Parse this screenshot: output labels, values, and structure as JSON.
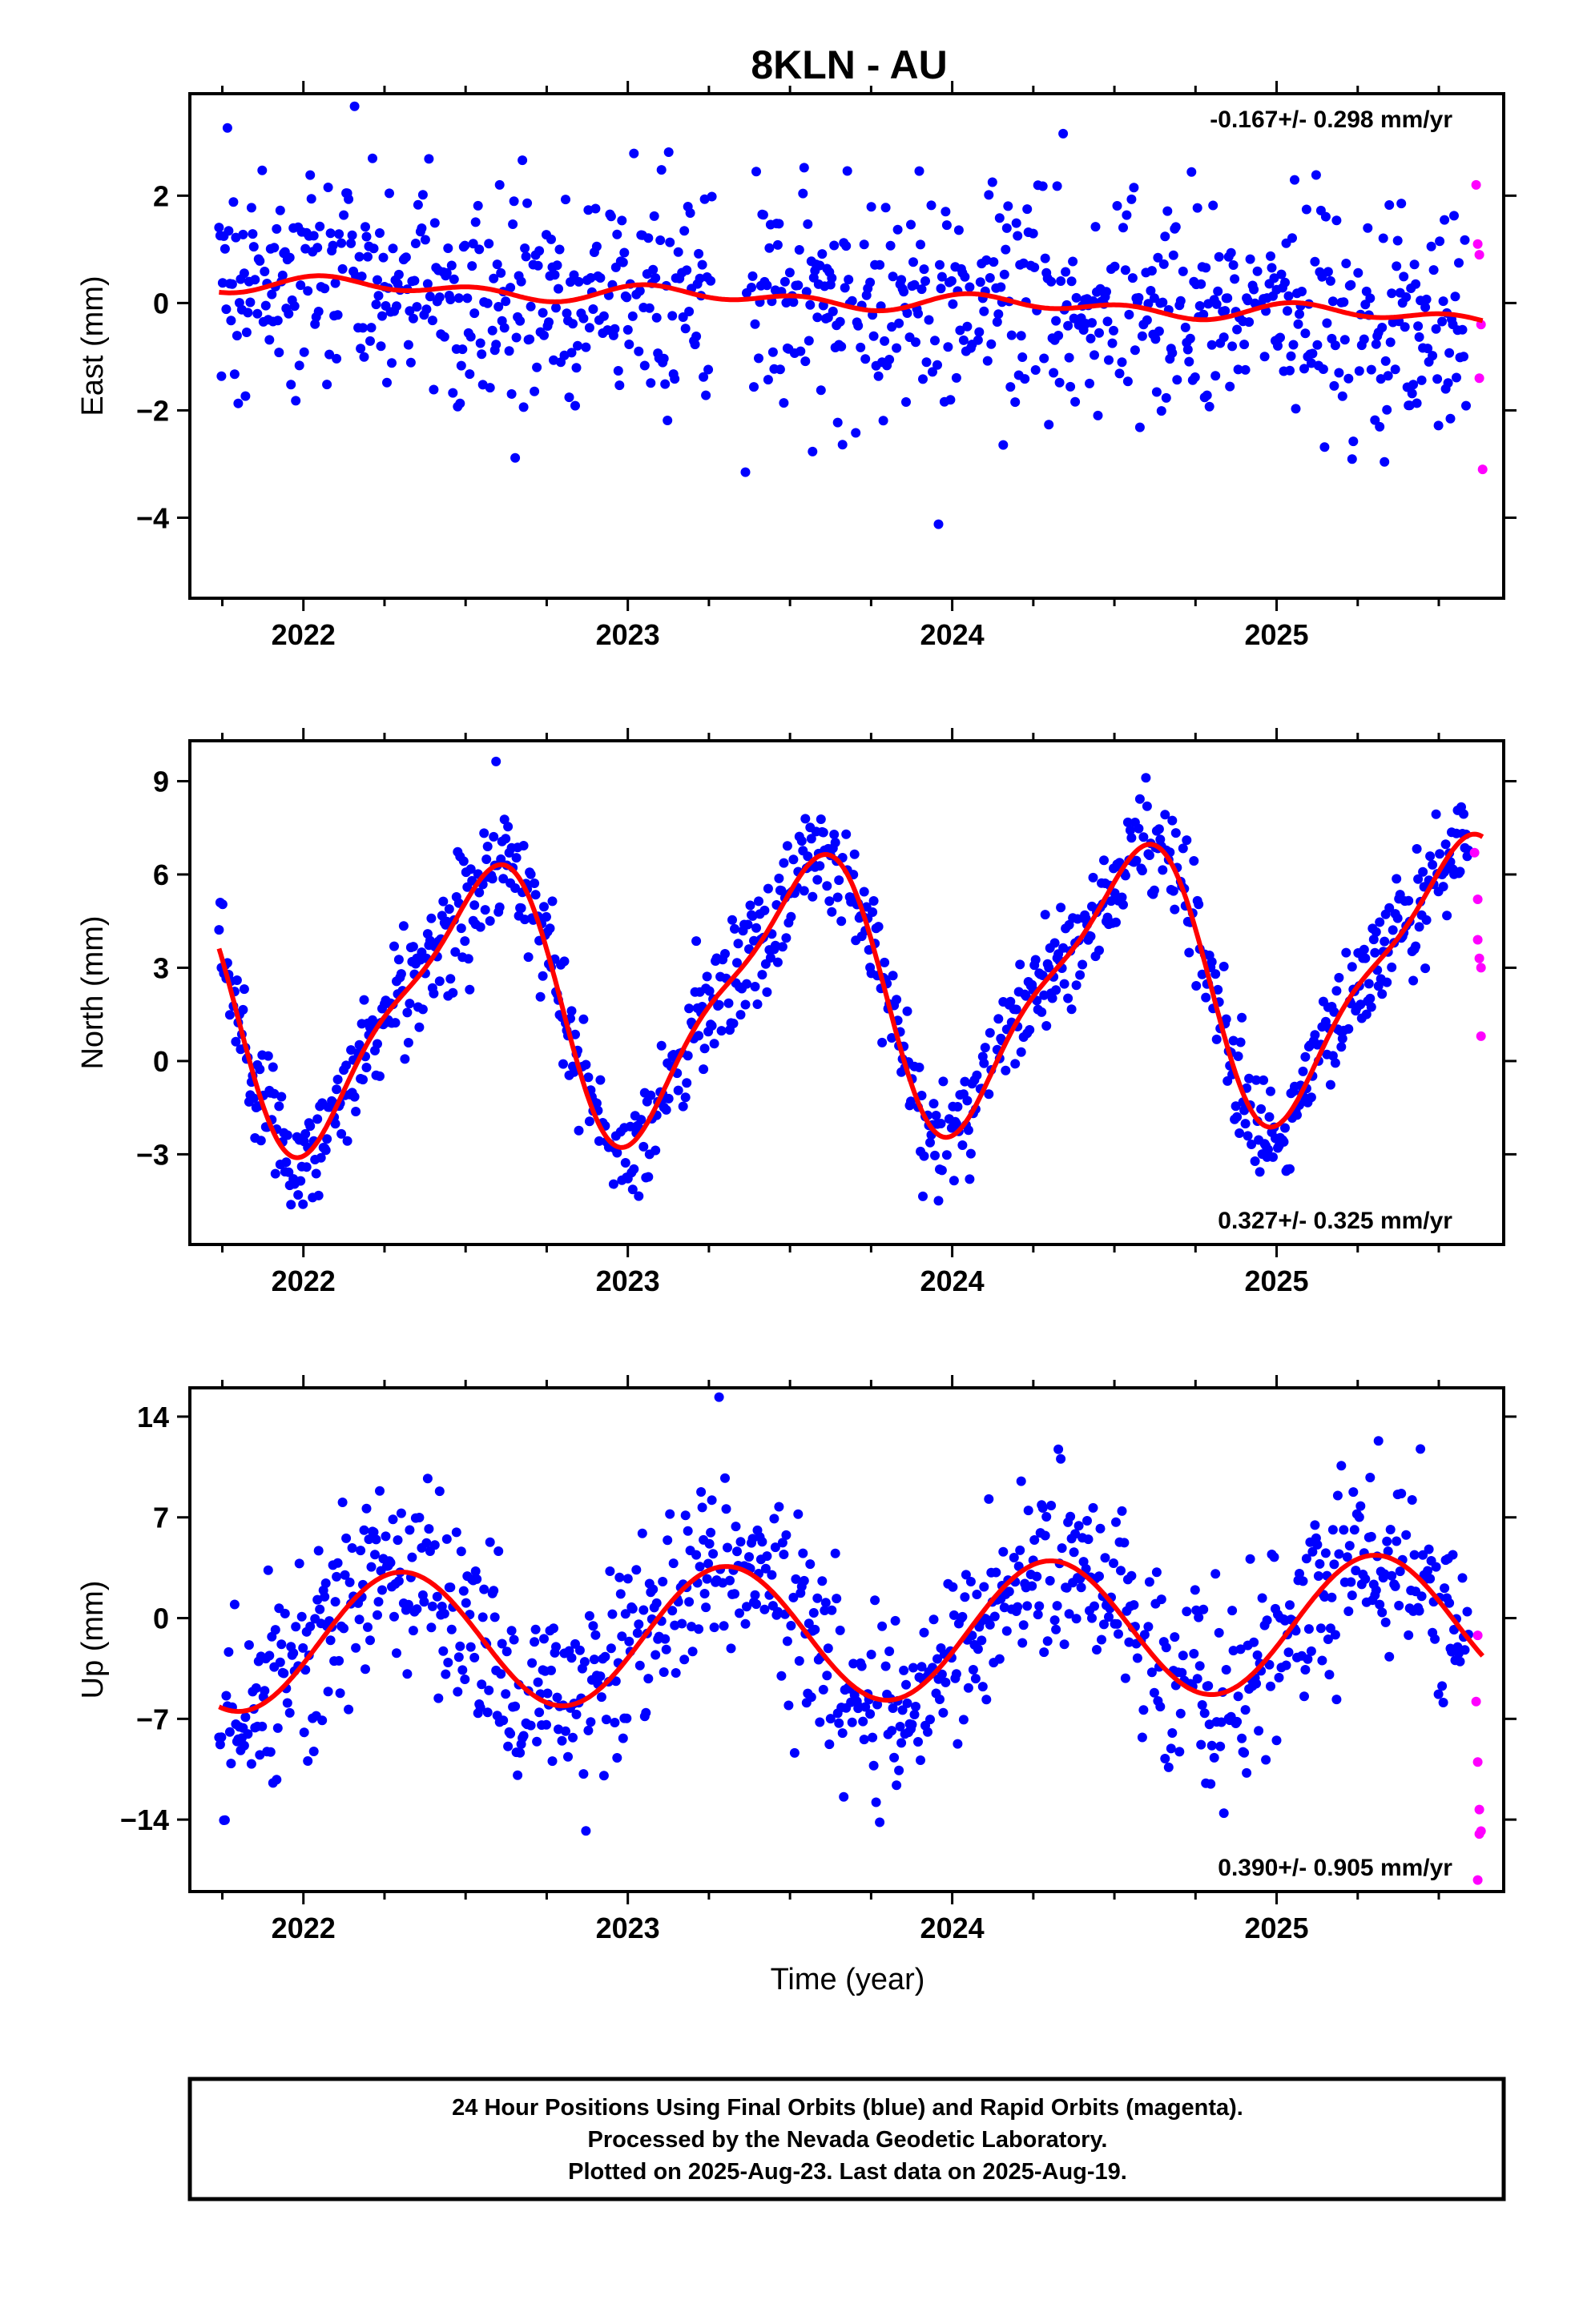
{
  "title": "8KLN - AU",
  "x_axis_label": "Time (year)",
  "colors": {
    "final": "#0000ff",
    "rapid": "#ff00ff",
    "fit": "#ff0000",
    "frame": "#000000"
  },
  "footer": {
    "line1": "24 Hour Positions Using Final Orbits (blue) and Rapid Orbits (magenta).",
    "line2": "Processed by the Nevada Geodetic Laboratory.",
    "line3": "Plotted on 2025-Aug-23. Last data on 2025-Aug-19."
  },
  "chart_data": [
    {
      "type": "scatter",
      "component": "east",
      "ylabel": "East (mm)",
      "rate_text": "-0.167+/- 0.298 mm/yr",
      "xlim": [
        2021.65,
        2025.7
      ],
      "ylim": [
        -5.5,
        3.9
      ],
      "yticks": [
        -4,
        -2,
        0,
        2
      ],
      "xticks": [
        2022,
        2023,
        2024,
        2025
      ],
      "grid": false,
      "rapid_points": [
        [
          2025.615,
          2.2
        ],
        [
          2025.62,
          1.1
        ],
        [
          2025.625,
          0.9
        ],
        [
          2025.63,
          -0.4
        ],
        [
          2025.625,
          -1.4
        ],
        [
          2025.635,
          -3.1
        ]
      ],
      "fit": {
        "offset": 0.05,
        "trend": -0.167,
        "annual_cos": 0.05,
        "annual_sin": 0.08,
        "semiannual_cos": 0.1,
        "semiannual_sin": 0.05,
        "noise_sd": 1.1
      }
    },
    {
      "type": "scatter",
      "component": "north",
      "ylabel": "North (mm)",
      "rate_text": "0.327+/- 0.325 mm/yr",
      "xlim": [
        2021.65,
        2025.7
      ],
      "ylim": [
        -5.9,
        10.3
      ],
      "yticks": [
        -3,
        0,
        3,
        6,
        9
      ],
      "xticks": [
        2022,
        2023,
        2024,
        2025
      ],
      "grid": false,
      "rapid_points": [
        [
          2025.61,
          6.7
        ],
        [
          2025.62,
          5.2
        ],
        [
          2025.62,
          3.9
        ],
        [
          2025.625,
          3.3
        ],
        [
          2025.63,
          3.0
        ],
        [
          2025.63,
          0.8
        ]
      ],
      "fit": {
        "offset": 2.2,
        "trend": 0.327,
        "annual_cos": -4.0,
        "annual_sin": -1.0,
        "semiannual_cos": -0.7,
        "semiannual_sin": 0.9,
        "noise_sd": 0.9
      }
    },
    {
      "type": "scatter",
      "component": "up",
      "ylabel": "Up (mm)",
      "rate_text": "0.390+/- 0.905 mm/yr",
      "xlim": [
        2021.65,
        2025.7
      ],
      "ylim": [
        -19,
        16
      ],
      "yticks": [
        -14,
        -7,
        0,
        7,
        14
      ],
      "xticks": [
        2022,
        2023,
        2024,
        2025
      ],
      "grid": false,
      "rapid_points": [
        [
          2025.62,
          -1.2
        ],
        [
          2025.615,
          -5.8
        ],
        [
          2025.62,
          -10.0
        ],
        [
          2025.625,
          -13.3
        ],
        [
          2025.63,
          -14.8
        ],
        [
          2025.625,
          -15.0
        ],
        [
          2025.62,
          -18.2
        ]
      ],
      "fit": {
        "offset": -1.0,
        "trend": 0.39,
        "annual_cos": -1.5,
        "annual_sin": 4.5,
        "semiannual_cos": 0.0,
        "semiannual_sin": 0.0,
        "noise_sd": 3.4
      }
    }
  ]
}
